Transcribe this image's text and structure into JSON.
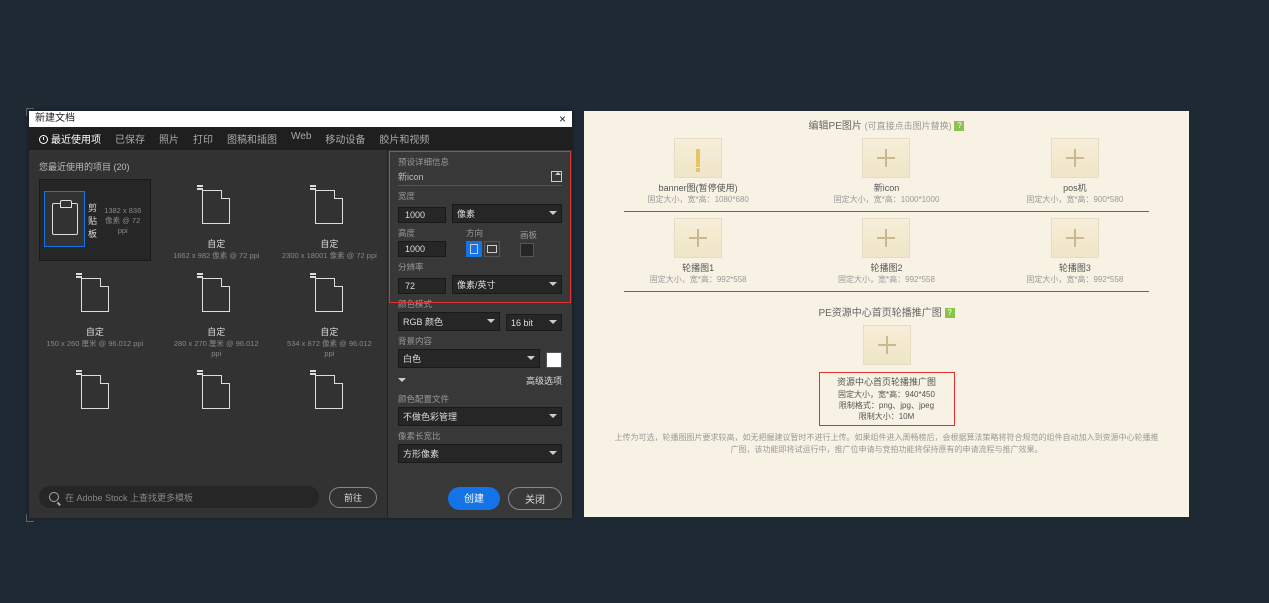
{
  "dialog": {
    "title": "新建文档",
    "tabs": [
      "最近使用项",
      "已保存",
      "照片",
      "打印",
      "图稿和插图",
      "Web",
      "移动设备",
      "胶片和视频"
    ],
    "recent_label": "您最近使用的项目 (20)",
    "presets": [
      {
        "name": "剪贴板",
        "dims": "1382 x 836 像素 @ 72 ppi"
      },
      {
        "name": "自定",
        "dims": "1662 x 982 像素 @ 72 ppi"
      },
      {
        "name": "自定",
        "dims": "2300 x 18001 像素 @ 72 ppi"
      },
      {
        "name": "自定",
        "dims": "150 x 260 厘米 @ 96.012 ppi"
      },
      {
        "name": "自定",
        "dims": "280 x 270 厘米 @ 96.012 ppi"
      },
      {
        "name": "自定",
        "dims": "534 x 872 像素 @ 96.012 ppi"
      },
      {
        "name": "",
        "dims": ""
      },
      {
        "name": "",
        "dims": ""
      },
      {
        "name": "",
        "dims": ""
      }
    ],
    "search_placeholder": "在 Adobe Stock 上查找更多模板",
    "go": "前往",
    "details_label": "预设详细信息",
    "name": "新icon",
    "width_label": "宽度",
    "width": "1000",
    "width_unit": "像素",
    "height_label": "高度",
    "height": "1000",
    "orient_label": "方向",
    "artboard_label": "画板",
    "res_label": "分辨率",
    "res": "72",
    "res_unit": "像素/英寸",
    "color_label": "颜色模式",
    "color_mode": "RGB 颜色",
    "bit": "16 bit",
    "bg_label": "背景内容",
    "bg": "白色",
    "adv_label": "高级选项",
    "profile_label": "颜色配置文件",
    "profile": "不做色彩管理",
    "aspect_label": "像素长宽比",
    "aspect": "方形像素",
    "create": "创建",
    "close": "关闭"
  },
  "cms": {
    "sec1_title": "编辑PE图片",
    "sec1_sub": "(可直接点击图片替换)",
    "row1": [
      {
        "name": "banner图(暂停使用)",
        "dims": "固定大小，宽*高：1080*680",
        "icon": "bang"
      },
      {
        "name": "新icon",
        "dims": "固定大小，宽*高：1000*1000",
        "icon": "plus"
      },
      {
        "name": "pos机",
        "dims": "固定大小，宽*高：900*580",
        "icon": "plus"
      }
    ],
    "row2": [
      {
        "name": "轮播图1",
        "dims": "固定大小，宽*高：992*558"
      },
      {
        "name": "轮播图2",
        "dims": "固定大小，宽*高：992*558"
      },
      {
        "name": "轮播图3",
        "dims": "固定大小，宽*高：992*558"
      }
    ],
    "sec2_title": "PE资源中心首页轮播推广图",
    "promo": {
      "title": "资源中心首页轮播推广图",
      "l1": "固定大小，宽*高：940*450",
      "l2": "限制格式：png、jpg、jpeg",
      "l3": "限制大小：10M"
    },
    "note": "上传为可选，轮播图图片要求较高，如无把握建议暂时不进行上传。如果组件进入周畅榜后，会根据算法策略将符合规范的组件自动加入到资源中心轮播推广图，该功能即将试运行中，推广位申请与竞拍功能将保持原有的申请流程与推广效果。"
  }
}
